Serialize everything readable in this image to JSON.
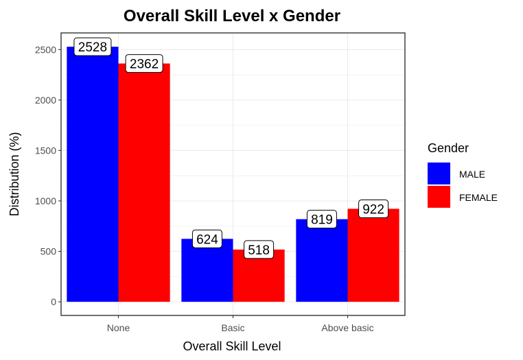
{
  "chart_data": {
    "type": "bar",
    "title": "Overall Skill Level x Gender",
    "xlabel": "Overall Skill Level",
    "ylabel": "Distribution (%)",
    "categories": [
      "None",
      "Basic",
      "Above basic"
    ],
    "series": [
      {
        "name": "MALE",
        "color": "#0000ff",
        "values": [
          2528,
          624,
          819
        ]
      },
      {
        "name": "FEMALE",
        "color": "#ff0000",
        "values": [
          2362,
          518,
          922
        ]
      }
    ],
    "ylim": [
      -135,
      2665
    ],
    "yticks": [
      0,
      500,
      1000,
      1500,
      2000,
      2500
    ],
    "legend": {
      "title": "Gender",
      "position": "right"
    },
    "grid": true
  }
}
